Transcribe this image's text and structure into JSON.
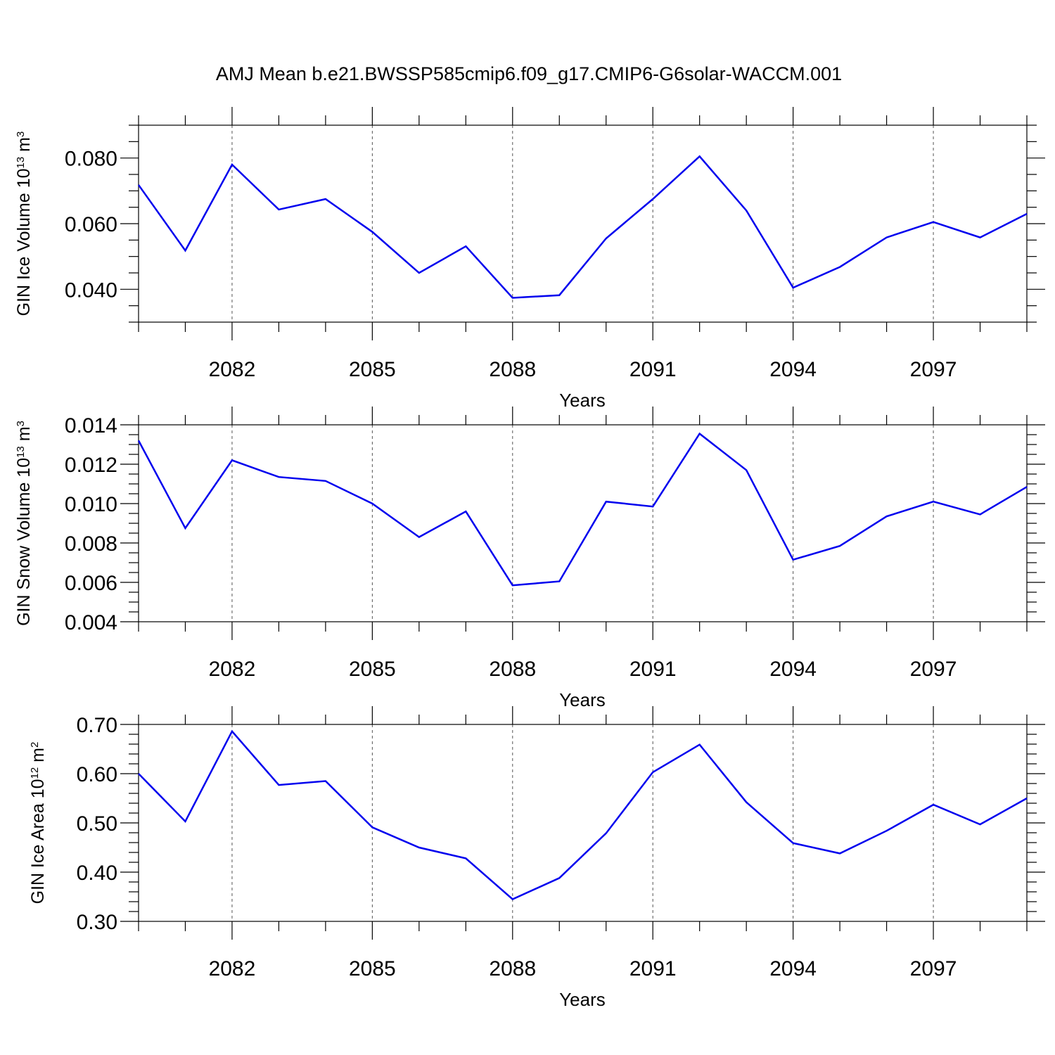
{
  "title": "AMJ Mean b.e21.BWSSP585cmip6.f09_g17.CMIP6-G6solar-WACCM.001",
  "colors": {
    "series": "#0000ee",
    "axis": "#000000",
    "grid": "#555555"
  },
  "chart_data": [
    {
      "type": "line",
      "ylabel": {
        "prefix": "GIN Ice Volume 10",
        "exponent": "13",
        "unit": " m",
        "unit_exponent": "3"
      },
      "xlabel": "Years",
      "xlim": [
        2080,
        2099
      ],
      "ylim": [
        0.03,
        0.09
      ],
      "yticks_major": [
        0.04,
        0.06,
        0.08
      ],
      "ytick_labels": [
        "0.040",
        "0.060",
        "0.080"
      ],
      "yminor_step": 0.005,
      "xticks_major": [
        2082,
        2085,
        2088,
        2091,
        2094,
        2097
      ],
      "xtick_labels": [
        "2082",
        "2085",
        "2088",
        "2091",
        "2094",
        "2097"
      ],
      "grid": "x-dashed",
      "x": [
        2080,
        2081,
        2082,
        2083,
        2084,
        2085,
        2086,
        2087,
        2088,
        2089,
        2090,
        2091,
        2092,
        2093,
        2094,
        2095,
        2096,
        2097,
        2098,
        2099
      ],
      "series": [
        {
          "values": [
            0.0718,
            0.0518,
            0.078,
            0.0643,
            0.0675,
            0.0575,
            0.045,
            0.0531,
            0.0374,
            0.0382,
            0.0555,
            0.0675,
            0.0805,
            0.064,
            0.0405,
            0.0468,
            0.0558,
            0.0605,
            0.0558,
            0.063
          ]
        }
      ]
    },
    {
      "type": "line",
      "ylabel": {
        "prefix": "GIN Snow Volume 10",
        "exponent": "13",
        "unit": " m",
        "unit_exponent": "3"
      },
      "xlabel": "Years",
      "xlim": [
        2080,
        2099
      ],
      "ylim": [
        0.004,
        0.014
      ],
      "yticks_major": [
        0.004,
        0.006,
        0.008,
        0.01,
        0.012,
        0.014
      ],
      "ytick_labels": [
        "0.004",
        "0.006",
        "0.008",
        "0.010",
        "0.012",
        "0.014"
      ],
      "yminor_step": 0.0005,
      "xticks_major": [
        2082,
        2085,
        2088,
        2091,
        2094,
        2097
      ],
      "xtick_labels": [
        "2082",
        "2085",
        "2088",
        "2091",
        "2094",
        "2097"
      ],
      "grid": "x-dashed",
      "x": [
        2080,
        2081,
        2082,
        2083,
        2084,
        2085,
        2086,
        2087,
        2088,
        2089,
        2090,
        2091,
        2092,
        2093,
        2094,
        2095,
        2096,
        2097,
        2098,
        2099
      ],
      "series": [
        {
          "values": [
            0.0132,
            0.00875,
            0.0122,
            0.01135,
            0.01115,
            0.01,
            0.0083,
            0.0096,
            0.00585,
            0.00605,
            0.0101,
            0.00985,
            0.01355,
            0.0117,
            0.00715,
            0.00785,
            0.00935,
            0.0101,
            0.00945,
            0.01085
          ]
        }
      ]
    },
    {
      "type": "line",
      "ylabel": {
        "prefix": "GIN Ice Area 10",
        "exponent": "12",
        "unit": " m",
        "unit_exponent": "2"
      },
      "xlabel": "Years",
      "xlim": [
        2080,
        2099
      ],
      "ylim": [
        0.3,
        0.7
      ],
      "yticks_major": [
        0.3,
        0.4,
        0.5,
        0.6,
        0.7
      ],
      "ytick_labels": [
        "0.30",
        "0.40",
        "0.50",
        "0.60",
        "0.70"
      ],
      "yminor_step": 0.02,
      "xticks_major": [
        2082,
        2085,
        2088,
        2091,
        2094,
        2097
      ],
      "xtick_labels": [
        "2082",
        "2085",
        "2088",
        "2091",
        "2094",
        "2097"
      ],
      "grid": "x-dashed",
      "x": [
        2080,
        2081,
        2082,
        2083,
        2084,
        2085,
        2086,
        2087,
        2088,
        2089,
        2090,
        2091,
        2092,
        2093,
        2094,
        2095,
        2096,
        2097,
        2098,
        2099
      ],
      "series": [
        {
          "values": [
            0.6,
            0.503,
            0.686,
            0.577,
            0.585,
            0.491,
            0.45,
            0.428,
            0.345,
            0.388,
            0.479,
            0.603,
            0.659,
            0.542,
            0.459,
            0.438,
            0.484,
            0.537,
            0.497,
            0.55
          ]
        }
      ]
    }
  ]
}
